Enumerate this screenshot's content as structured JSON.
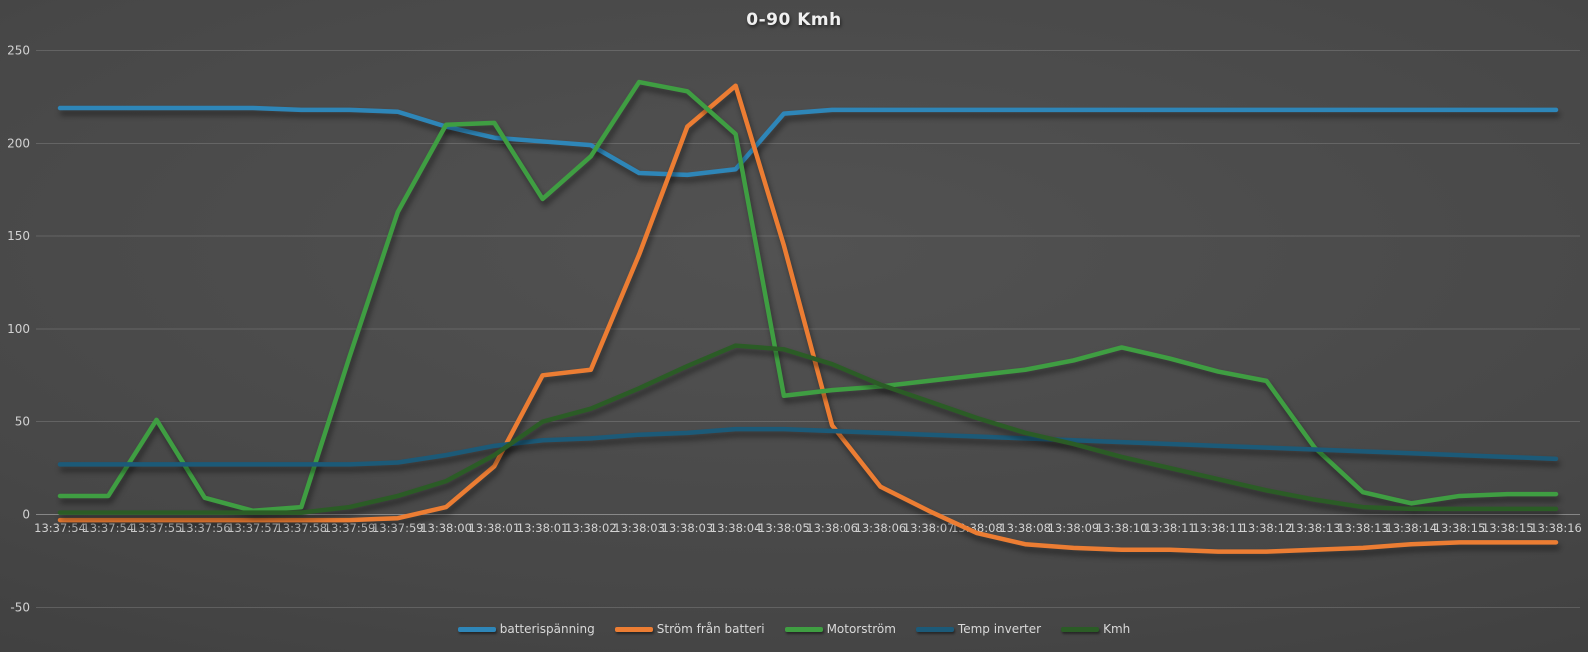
{
  "title": "0-90 Kmh",
  "chart_data": {
    "type": "line",
    "title": "0-90 Kmh",
    "xlabel": "",
    "ylabel": "",
    "ylim": [
      -50,
      250
    ],
    "y_ticks": [
      250,
      200,
      150,
      100,
      50,
      0,
      -50
    ],
    "grid": "horizontal",
    "legend_position": "bottom",
    "categories": [
      "13:37:54",
      "13:37:54",
      "13:37:55",
      "13:37:56",
      "13:37:57",
      "13:37:58",
      "13:37:59",
      "13:37:59",
      "13:38:00",
      "13:38:01",
      "13:38:01",
      "13:38:02",
      "13:38:03",
      "13:38:03",
      "13:38:04",
      "13:38:05",
      "13:38:06",
      "13:38:06",
      "13:38:07",
      "13:38:08",
      "13:38:08",
      "13:38:09",
      "13:38:10",
      "13:38:11",
      "13:38:11",
      "13:38:12",
      "13:38:13",
      "13:38:13",
      "13:38:14",
      "13:38:15",
      "13:38:15",
      "13:38:16"
    ],
    "series": [
      {
        "name": "batterispänning",
        "color": "#2E86B8",
        "values": [
          219,
          219,
          219,
          219,
          219,
          218,
          218,
          217,
          209,
          203,
          201,
          199,
          184,
          183,
          186,
          216,
          218,
          218,
          218,
          218,
          218,
          218,
          218,
          218,
          218,
          218,
          218,
          218,
          218,
          218,
          218,
          218
        ]
      },
      {
        "name": "Ström från batteri",
        "color": "#EC7D33",
        "values": [
          -3,
          -3,
          -3,
          -3,
          -3,
          -3,
          -3,
          -2,
          4,
          26,
          75,
          78,
          140,
          209,
          231,
          145,
          48,
          15,
          2,
          -10,
          -16,
          -18,
          -19,
          -19,
          -20,
          -20,
          -19,
          -18,
          -16,
          -15,
          -15,
          -15
        ]
      },
      {
        "name": "Motorström",
        "color": "#3F9E42",
        "values": [
          10,
          10,
          51,
          9,
          2,
          4,
          85,
          163,
          210,
          211,
          170,
          193,
          233,
          228,
          205,
          64,
          67,
          69,
          72,
          75,
          78,
          83,
          90,
          84,
          77,
          72,
          36,
          12,
          6,
          10,
          11,
          11
        ]
      },
      {
        "name": "Temp inverter",
        "color": "#1C5A78",
        "values": [
          27,
          27,
          27,
          27,
          27,
          27,
          27,
          28,
          32,
          37,
          40,
          41,
          43,
          44,
          46,
          46,
          45,
          44,
          43,
          42,
          41,
          40,
          39,
          38,
          37,
          36,
          35,
          34,
          33,
          32,
          31,
          30
        ]
      },
      {
        "name": "Kmh",
        "color": "#2B5C26",
        "values": [
          1,
          1,
          1,
          1,
          1,
          1,
          4,
          10,
          18,
          32,
          50,
          57,
          68,
          80,
          91,
          89,
          81,
          70,
          61,
          52,
          44,
          38,
          31,
          25,
          19,
          13,
          8,
          4,
          3,
          3,
          3,
          3
        ]
      }
    ]
  },
  "style": {
    "background_center": "#525252",
    "background_edge": "#383838",
    "grid_color": "rgba(255,255,255,0.15)",
    "axis_label_color": "#D2D2D2",
    "title_color": "#F0F0F0"
  }
}
